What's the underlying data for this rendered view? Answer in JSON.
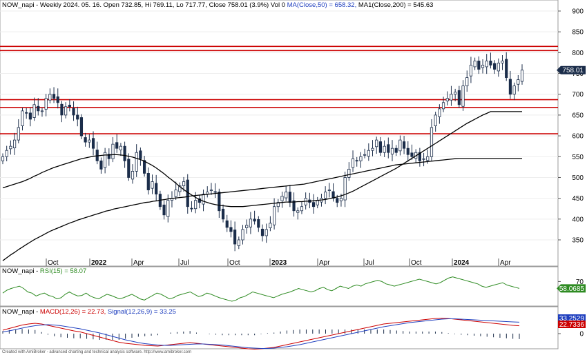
{
  "header": {
    "prefix": "NOW_napi - Weekly 2024. 05. 16. Open 732.85, Hi 769.11, Lo 717.77, Close 758.01 (3.9%) Vol 0 ",
    "ma50": "MA(Close,50) = 658.32, ",
    "ma200": "MA1(Close,200) = 545.63"
  },
  "rsi_header": {
    "prefix": "NOW_napi - ",
    "label": "RSI(15) = 58.07"
  },
  "macd_header": {
    "prefix": "NOW_napi - ",
    "macd": "MACD(12,26) = 22.73, ",
    "signal": "Signal(12,26,9) = 33.25"
  },
  "footer": "Created with AmiBroker - advanced charting and technical analysis software. http://www.amibroker.com",
  "colors": {
    "up": "#ffffff",
    "down": "#1b2d4a",
    "ma": "#000000",
    "hline": "#cc0000",
    "rsi": "#2e8b22",
    "macd": "#cc0000",
    "signal": "#1f3fbf",
    "hist": "#1b2d4a"
  },
  "chart_data": [
    {
      "type": "candlestick",
      "title": "NOW_napi - Weekly",
      "y_ticks": [
        900,
        850,
        800,
        750,
        700,
        650,
        600,
        550,
        500,
        450,
        400,
        350
      ],
      "ylim": [
        305,
        915
      ],
      "x_labels": [
        "Oct",
        "2022",
        "Apr",
        "Jul",
        "Oct",
        "2023",
        "Apr",
        "Jul",
        "Oct",
        "2024",
        "Apr"
      ],
      "last_price_label": "758.01",
      "horizontal_lines": [
        815,
        805,
        687,
        668,
        605
      ],
      "close": [
        550,
        565,
        575,
        590,
        620,
        660,
        655,
        640,
        675,
        660,
        660,
        690,
        700,
        690,
        680,
        650,
        670,
        670,
        650,
        640,
        600,
        585,
        590,
        570,
        540,
        520,
        560,
        545,
        580,
        570,
        575,
        540,
        500,
        515,
        560,
        545,
        510,
        470,
        490,
        460,
        430,
        410,
        445,
        450,
        470,
        480,
        490,
        430,
        425,
        445,
        440,
        460,
        465,
        470,
        465,
        420,
        400,
        380,
        370,
        340,
        350,
        375,
        385,
        400,
        395,
        380,
        360,
        375,
        390,
        430,
        440,
        455,
        465,
        440,
        420,
        420,
        430,
        450,
        440,
        430,
        445,
        450,
        465,
        470,
        450,
        440,
        450,
        500,
        520,
        545,
        540,
        550,
        555,
        565,
        570,
        590,
        560,
        575,
        560,
        570,
        560,
        590,
        570,
        555,
        550,
        560,
        540,
        545,
        550,
        620,
        650,
        665,
        680,
        690,
        700,
        705,
        675,
        720,
        740,
        770,
        780,
        760,
        770,
        780,
        770,
        760,
        775,
        780,
        740,
        700,
        720,
        735,
        758.01
      ],
      "ma50": [
        475,
        478,
        481,
        484,
        487,
        490,
        494,
        498,
        503,
        507,
        512,
        516,
        520,
        524,
        527,
        530,
        533,
        536,
        539,
        542,
        545,
        547,
        549,
        551,
        552,
        553,
        554,
        554,
        555,
        555,
        554,
        553,
        551,
        549,
        546,
        543,
        539,
        534,
        529,
        523,
        516,
        509,
        501,
        494,
        486,
        478,
        471,
        464,
        458,
        452,
        447,
        443,
        440,
        437,
        435,
        433,
        432,
        431,
        430,
        430,
        430,
        430,
        431,
        432,
        433,
        434,
        435,
        436,
        437,
        438,
        439,
        440,
        441,
        441,
        441,
        442,
        442,
        443,
        443,
        444,
        445,
        446,
        447,
        449,
        451,
        453,
        456,
        459,
        463,
        467,
        472,
        477,
        482,
        487,
        492,
        497,
        502,
        507,
        512,
        517,
        522,
        528,
        534,
        540,
        546,
        552,
        558,
        564,
        570,
        576,
        582,
        588,
        594,
        600,
        606,
        612,
        618,
        624,
        630,
        635,
        640,
        645,
        650,
        654,
        658.32,
        658.32,
        658.32,
        658.32,
        658.32,
        658.32,
        658.32,
        658.32,
        658.32
      ],
      "ma200": [
        300,
        307,
        314,
        320,
        327,
        333,
        339,
        345,
        351,
        356,
        361,
        366,
        371,
        375,
        379,
        383,
        387,
        391,
        394,
        398,
        401,
        404,
        407,
        410,
        413,
        416,
        419,
        421,
        424,
        426,
        428,
        430,
        432,
        434,
        436,
        438,
        440,
        441,
        443,
        444,
        446,
        447,
        449,
        450,
        451,
        452,
        453,
        455,
        456,
        457,
        458,
        459,
        460,
        461,
        462,
        463,
        464,
        465,
        466,
        467,
        468,
        469,
        470,
        471,
        472,
        473,
        474,
        475,
        476,
        477,
        478,
        479,
        480,
        481,
        482,
        483,
        484,
        486,
        488,
        490,
        492,
        494,
        496,
        498,
        500,
        502,
        504,
        506,
        508,
        510,
        512,
        514,
        516,
        518,
        520,
        522,
        524,
        526,
        528,
        530,
        531,
        532,
        533,
        534,
        535,
        536,
        537,
        538,
        539,
        540,
        541,
        542,
        543,
        544,
        545,
        545.63,
        545.63,
        545.63,
        545.63,
        545.63,
        545.63,
        545.63,
        545.63,
        545.63,
        545.63,
        545.63,
        545.63,
        545.63,
        545.63,
        545.63,
        545.63,
        545.63
      ]
    },
    {
      "type": "line",
      "title": "RSI(15)",
      "y_ticks": [
        70
      ],
      "last_value_label": "58.0685",
      "values": [
        50,
        55,
        58,
        60,
        62,
        58,
        52,
        50,
        45,
        48,
        50,
        46,
        44,
        40,
        42,
        48,
        52,
        48,
        45,
        46,
        50,
        45,
        42,
        40,
        44,
        48,
        46,
        43,
        40,
        42,
        45,
        48,
        44,
        40,
        38,
        42,
        46,
        50,
        48,
        44,
        40,
        42,
        46,
        48,
        50,
        52,
        48,
        44,
        46,
        50,
        48,
        45,
        42,
        40,
        38,
        36,
        38,
        42,
        44,
        48,
        52,
        50,
        48,
        46,
        44,
        42,
        45,
        48,
        50,
        52,
        55,
        58,
        56,
        54,
        52,
        54,
        58,
        60,
        56,
        54,
        58,
        62,
        60,
        58,
        62,
        64,
        62,
        66,
        68,
        70,
        72,
        70,
        66,
        64,
        62,
        64,
        66,
        68,
        70,
        72,
        74,
        72,
        70,
        68,
        66,
        68,
        72,
        76,
        78,
        76,
        74,
        72,
        70,
        68,
        66,
        62,
        60,
        62,
        64,
        66,
        68,
        64,
        62,
        60,
        58.07
      ]
    },
    {
      "type": "line",
      "title": "MACD(12,26) / Signal(12,26,9)",
      "y_ticks": [
        0
      ],
      "last_value_labels": [
        "33.2529",
        "22.7336"
      ],
      "macd": [
        10,
        15,
        20,
        25,
        28,
        30,
        28,
        24,
        20,
        16,
        12,
        8,
        5,
        0,
        -5,
        -10,
        -15,
        -20,
        -25,
        -28,
        -30,
        -32,
        -34,
        -35,
        -36,
        -34,
        -32,
        -30,
        -28,
        -26,
        -28,
        -30,
        -32,
        -34,
        -36,
        -38,
        -40,
        -42,
        -44,
        -45,
        -44,
        -42,
        -40,
        -36,
        -32,
        -28,
        -24,
        -20,
        -16,
        -12,
        -8,
        -4,
        0,
        4,
        8,
        12,
        16,
        20,
        24,
        28,
        30,
        32,
        34,
        36,
        38,
        40,
        42,
        44,
        45,
        44,
        42,
        40,
        38,
        36,
        34,
        32,
        30,
        28,
        26,
        24,
        22.73
      ],
      "signal": [
        5,
        8,
        12,
        16,
        20,
        23,
        25,
        26,
        25,
        23,
        20,
        17,
        14,
        10,
        6,
        2,
        -3,
        -8,
        -13,
        -18,
        -22,
        -26,
        -29,
        -31,
        -33,
        -34,
        -34,
        -33,
        -32,
        -31,
        -30,
        -30,
        -31,
        -32,
        -33,
        -35,
        -37,
        -39,
        -41,
        -42,
        -43,
        -43,
        -42,
        -40,
        -38,
        -35,
        -32,
        -28,
        -24,
        -20,
        -16,
        -12,
        -8,
        -4,
        0,
        4,
        8,
        12,
        16,
        20,
        23,
        26,
        29,
        32,
        34,
        36,
        38,
        40,
        42,
        43,
        43,
        42,
        41,
        40,
        39,
        38,
        37,
        36,
        35,
        34,
        33.25
      ]
    }
  ]
}
